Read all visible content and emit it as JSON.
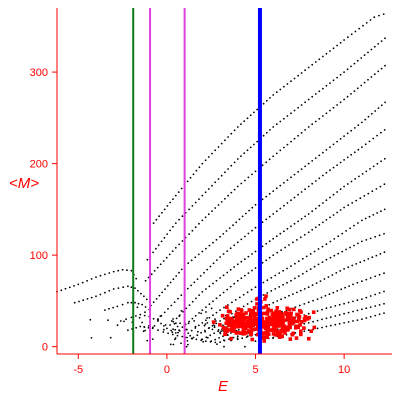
{
  "chart_data": {
    "type": "scatter",
    "xlabel": "E",
    "ylabel": "<M>",
    "xlim": [
      -6.2,
      12.7
    ],
    "ylim": [
      -8,
      370
    ],
    "x_ticks": [
      -5,
      0,
      5,
      10
    ],
    "y_ticks": [
      0,
      100,
      200,
      300
    ],
    "grid": false,
    "axis_color": "#ff0000",
    "series": [
      {
        "color": "#000000",
        "point_style": "dot",
        "curves": [
          {
            "x": [
              -0.75,
              0.5,
              2,
              4,
              6,
              8,
              10,
              11.7,
              12.5
            ],
            "y": [
              135,
              165,
              200,
              240,
              275,
              305,
              335,
              360,
              365
            ]
          },
          {
            "x": [
              -1.1,
              0.5,
              2,
              4,
              6,
              8,
              10,
              12.5
            ],
            "y": [
              95,
              135,
              165,
              205,
              240,
              270,
              300,
              340
            ]
          },
          {
            "x": [
              -1.2,
              0.5,
              2,
              4,
              6,
              8,
              10,
              12.5
            ],
            "y": [
              72,
              108,
              138,
              175,
              208,
              240,
              270,
              310
            ]
          },
          {
            "x": [
              -0.9,
              1,
              3,
              5,
              7,
              9,
              11,
              12.5
            ],
            "y": [
              45,
              88,
              120,
              155,
              185,
              215,
              245,
              270
            ]
          },
          {
            "x": [
              -0.5,
              1,
              3,
              5,
              7,
              9,
              11,
              12.5
            ],
            "y": [
              30,
              60,
              98,
              130,
              160,
              190,
              218,
              240
            ]
          },
          {
            "x": [
              0,
              2,
              4,
              6,
              8,
              10,
              12.5
            ],
            "y": [
              20,
              60,
              90,
              118,
              145,
              175,
              208
            ]
          },
          {
            "x": [
              0.5,
              2,
              4,
              6,
              8,
              10,
              12.5
            ],
            "y": [
              15,
              40,
              72,
              100,
              125,
              152,
              180
            ]
          },
          {
            "x": [
              1,
              3,
              5,
              7,
              9,
              11,
              12.5
            ],
            "y": [
              12,
              40,
              65,
              88,
              112,
              138,
              152
            ]
          },
          {
            "x": [
              1.5,
              3,
              5,
              7,
              9,
              11,
              12.5
            ],
            "y": [
              10,
              28,
              52,
              72,
              95,
              115,
              125
            ]
          },
          {
            "x": [
              2,
              4,
              6,
              8,
              10,
              12.5
            ],
            "y": [
              8,
              28,
              48,
              65,
              85,
              105
            ]
          },
          {
            "x": [
              2.5,
              4.5,
              6.5,
              8.5,
              10.5,
              12.5
            ],
            "y": [
              6,
              22,
              38,
              52,
              68,
              82
            ]
          },
          {
            "x": [
              3,
              5,
              7,
              9,
              11,
              12.5
            ],
            "y": [
              5,
              18,
              30,
              42,
              52,
              62
            ]
          },
          {
            "x": [
              4,
              6,
              8,
              10,
              12.5
            ],
            "y": [
              8,
              18,
              26,
              36,
              48
            ]
          },
          {
            "x": [
              5,
              7,
              9,
              11,
              12.5
            ],
            "y": [
              6,
              14,
              22,
              30,
              38
            ]
          },
          {
            "x": [
              -6.2,
              -5,
              -4,
              -3,
              -2.5,
              -2,
              -1.6
            ],
            "y": [
              60,
              68,
              76,
              82,
              84,
              83,
              70
            ]
          },
          {
            "x": [
              -5.2,
              -4,
              -3,
              -2.2,
              -1.8,
              -1.3,
              -0.8
            ],
            "y": [
              48,
              55,
              63,
              66,
              64,
              55,
              45
            ]
          },
          {
            "x": [
              -3.5,
              -2.8,
              -2.2,
              -1.8,
              -1.4,
              -0.8
            ],
            "y": [
              40,
              44,
              48,
              48,
              46,
              38
            ]
          },
          {
            "x": [
              -2.6,
              -2,
              -1.5,
              -1,
              -0.5,
              0
            ],
            "y": [
              28,
              32,
              35,
              33,
              28,
              20
            ]
          },
          {
            "x": [
              -2.2,
              -1.5,
              -0.8,
              -0.2,
              0.6,
              1.4,
              2.2,
              3
            ],
            "y": [
              18,
              22,
              20,
              16,
              12,
              9,
              6,
              4
            ]
          }
        ],
        "scatter": {
          "center": [
            1.5,
            20
          ],
          "spread": [
            2.2,
            10
          ],
          "count": 110
        }
      },
      {
        "color": "#ff0000",
        "point_style": "dot",
        "clusters": [
          {
            "center": [
              4.4,
              25
            ],
            "spread": [
              0.7,
              7
            ],
            "count": 150
          },
          {
            "center": [
              6.3,
              25
            ],
            "spread": [
              0.8,
              8
            ],
            "count": 180
          },
          {
            "center": [
              5.2,
              45
            ],
            "spread": [
              0.4,
              8
            ],
            "count": 14
          }
        ]
      }
    ],
    "vlines": [
      {
        "x": -1.9,
        "color": "#0a7a1a",
        "width": 2
      },
      {
        "x": -0.95,
        "color": "#e040e0",
        "width": 2
      },
      {
        "x": 1.0,
        "color": "#e040e0",
        "width": 2
      },
      {
        "x": 5.25,
        "color": "#0000ff",
        "width": 4
      }
    ]
  }
}
